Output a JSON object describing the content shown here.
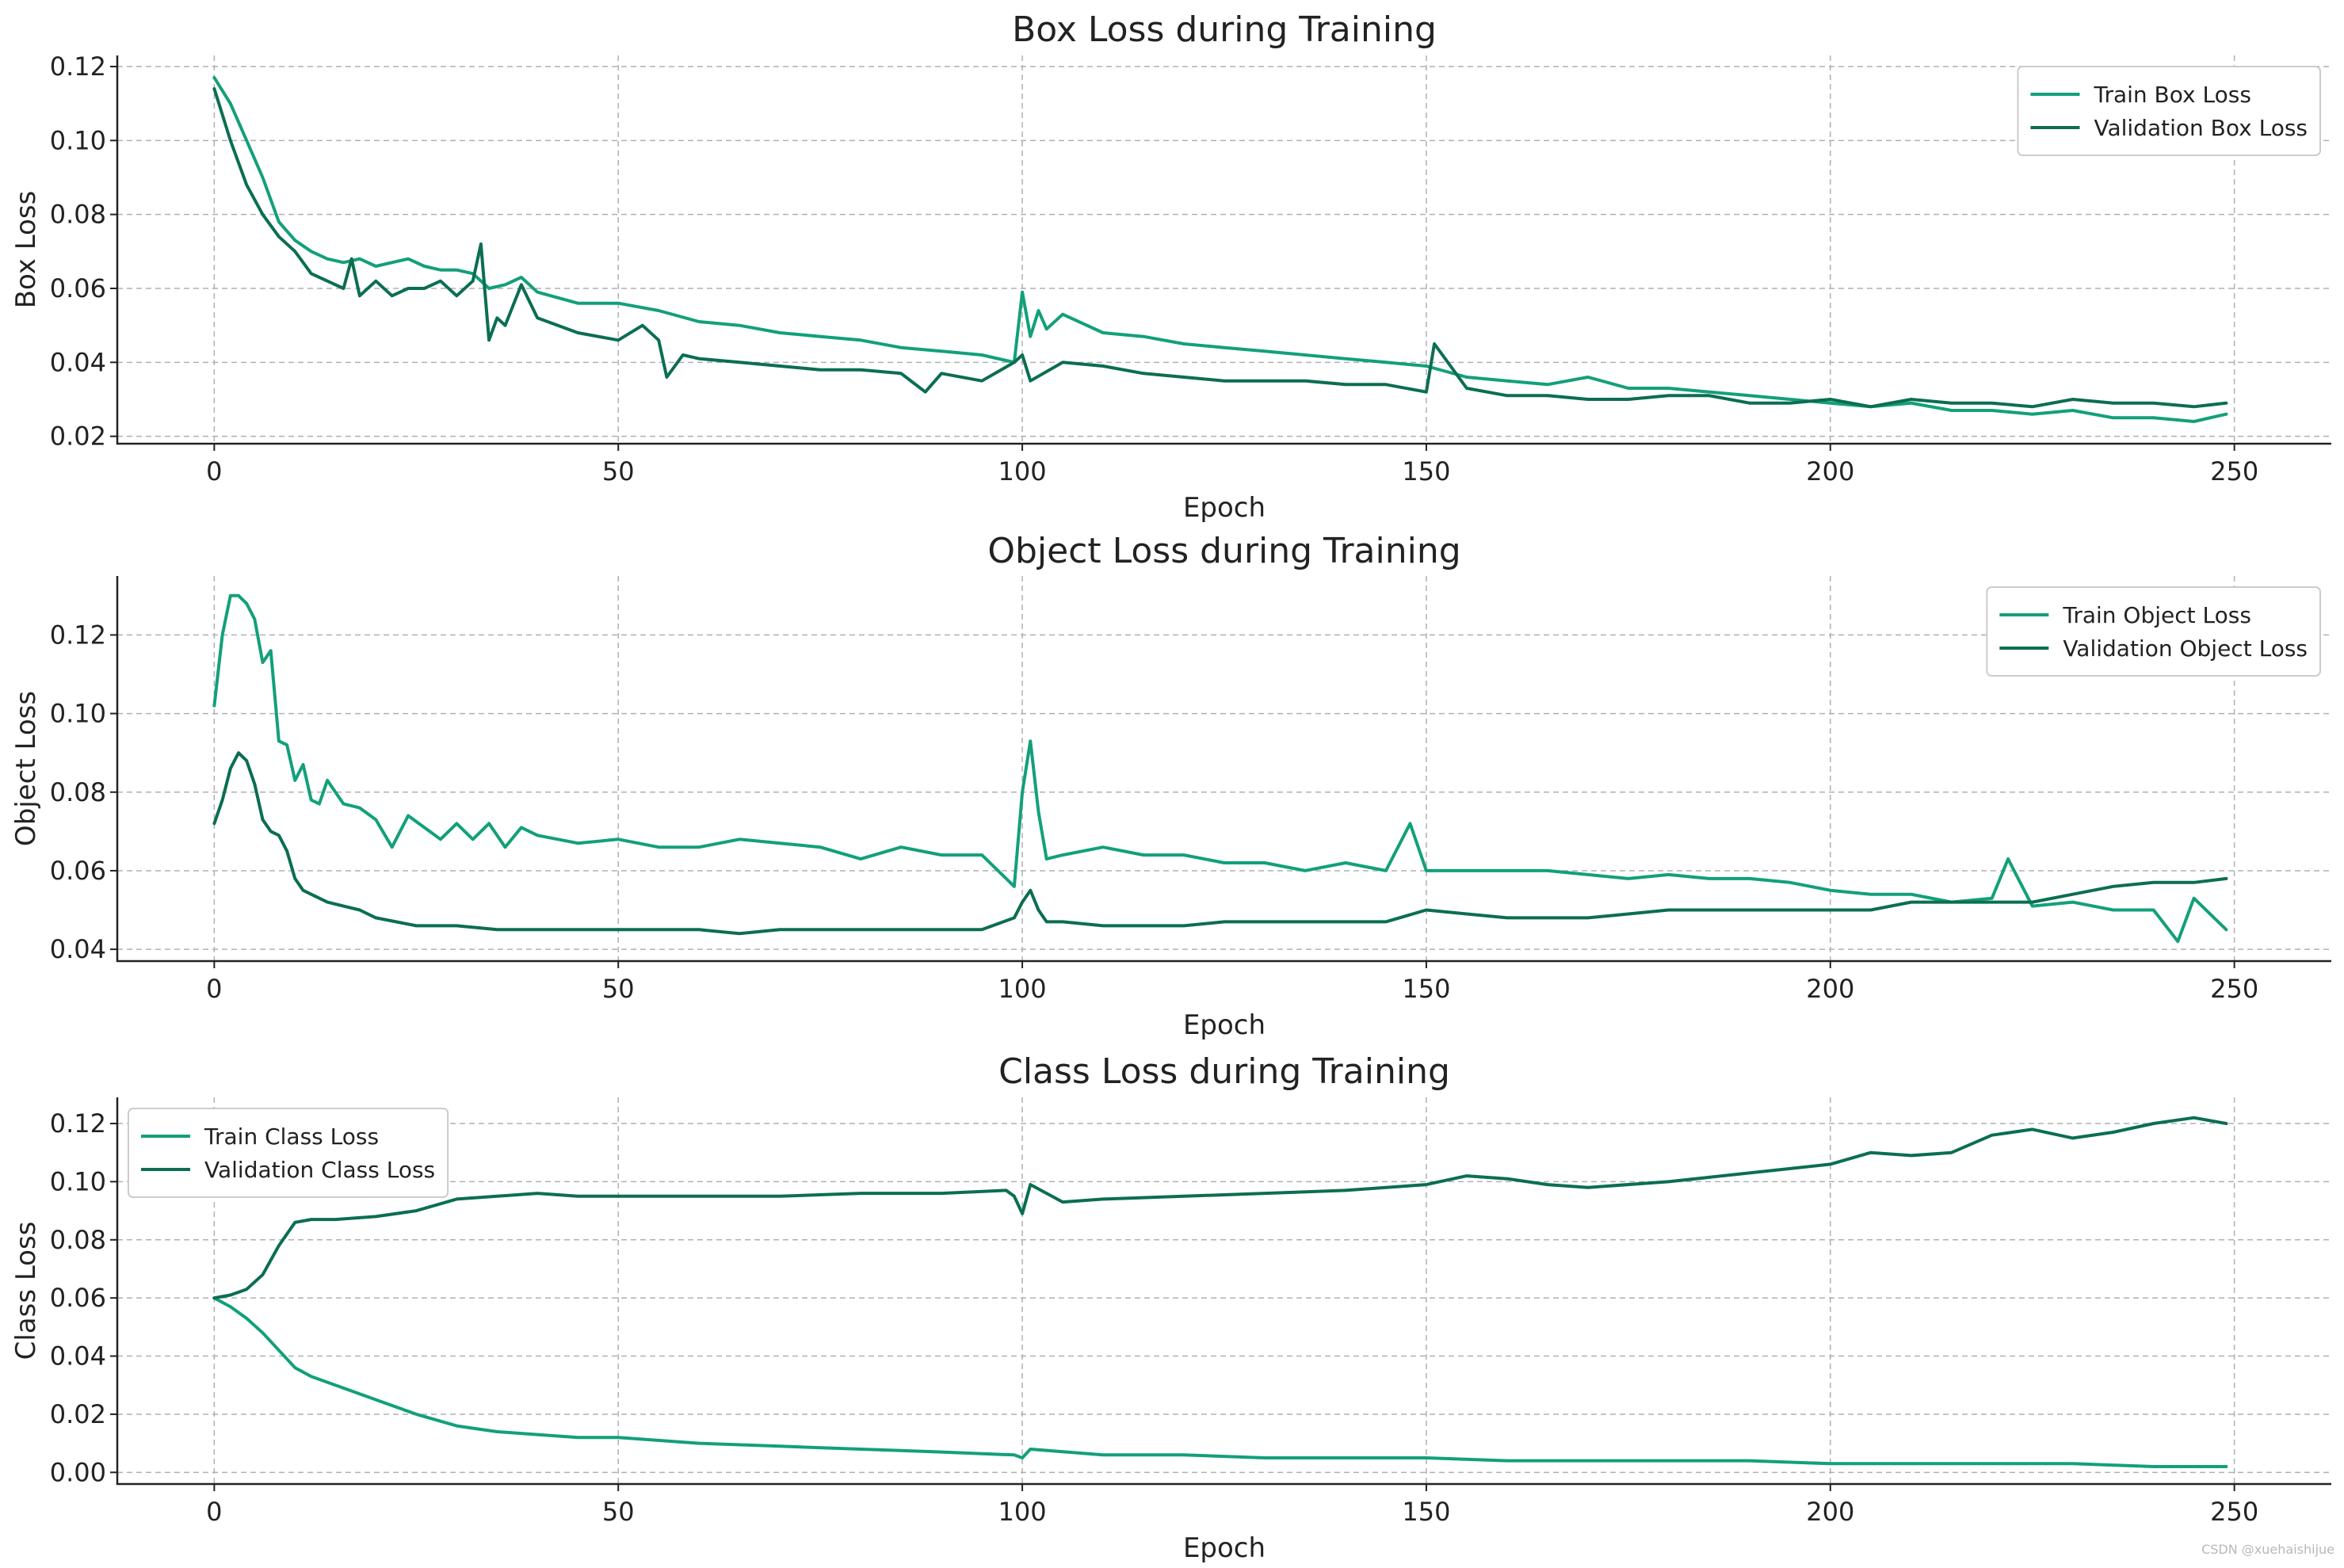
{
  "chart_data": [
    {
      "type": "line",
      "title": "Box Loss during Training",
      "xlabel": "Epoch",
      "ylabel": "Box Loss",
      "xlim": [
        -12,
        262
      ],
      "ylim": [
        0.018,
        0.123
      ],
      "xticks": [
        0,
        50,
        100,
        150,
        200,
        250
      ],
      "yticks": [
        0.02,
        0.04,
        0.06,
        0.08,
        0.1,
        0.12
      ],
      "ytick_decimals": 2,
      "grid": true,
      "legend_position": "top-right",
      "series": [
        {
          "name": "Train Box Loss",
          "color": "#12a07a",
          "x": [
            0,
            2,
            4,
            6,
            8,
            10,
            12,
            14,
            16,
            18,
            20,
            22,
            24,
            26,
            28,
            30,
            32,
            34,
            36,
            38,
            40,
            45,
            50,
            55,
            60,
            65,
            70,
            75,
            80,
            85,
            90,
            95,
            99,
            100,
            101,
            102,
            103,
            105,
            110,
            115,
            120,
            125,
            130,
            135,
            140,
            145,
            150,
            155,
            160,
            165,
            170,
            175,
            180,
            185,
            190,
            195,
            200,
            205,
            210,
            215,
            220,
            225,
            230,
            235,
            240,
            245,
            249
          ],
          "y": [
            0.117,
            0.11,
            0.1,
            0.09,
            0.078,
            0.073,
            0.07,
            0.068,
            0.067,
            0.068,
            0.066,
            0.067,
            0.068,
            0.066,
            0.065,
            0.065,
            0.064,
            0.06,
            0.061,
            0.063,
            0.059,
            0.056,
            0.056,
            0.054,
            0.051,
            0.05,
            0.048,
            0.047,
            0.046,
            0.044,
            0.043,
            0.042,
            0.04,
            0.059,
            0.047,
            0.054,
            0.049,
            0.053,
            0.048,
            0.047,
            0.045,
            0.044,
            0.043,
            0.042,
            0.041,
            0.04,
            0.039,
            0.036,
            0.035,
            0.034,
            0.036,
            0.033,
            0.033,
            0.032,
            0.031,
            0.03,
            0.029,
            0.028,
            0.029,
            0.027,
            0.027,
            0.026,
            0.027,
            0.025,
            0.025,
            0.024,
            0.026
          ]
        },
        {
          "name": "Validation Box Loss",
          "color": "#0b6e52",
          "x": [
            0,
            2,
            4,
            6,
            8,
            10,
            12,
            14,
            16,
            17,
            18,
            20,
            22,
            24,
            26,
            28,
            30,
            32,
            33,
            34,
            35,
            36,
            38,
            40,
            45,
            50,
            53,
            55,
            56,
            58,
            60,
            65,
            70,
            75,
            80,
            85,
            88,
            90,
            95,
            99,
            100,
            101,
            105,
            110,
            115,
            120,
            125,
            130,
            135,
            140,
            145,
            150,
            151,
            155,
            160,
            165,
            170,
            175,
            180,
            185,
            190,
            195,
            200,
            205,
            210,
            215,
            220,
            225,
            230,
            235,
            240,
            245,
            249
          ],
          "y": [
            0.114,
            0.1,
            0.088,
            0.08,
            0.074,
            0.07,
            0.064,
            0.062,
            0.06,
            0.068,
            0.058,
            0.062,
            0.058,
            0.06,
            0.06,
            0.062,
            0.058,
            0.062,
            0.072,
            0.046,
            0.052,
            0.05,
            0.061,
            0.052,
            0.048,
            0.046,
            0.05,
            0.046,
            0.036,
            0.042,
            0.041,
            0.04,
            0.039,
            0.038,
            0.038,
            0.037,
            0.032,
            0.037,
            0.035,
            0.04,
            0.042,
            0.035,
            0.04,
            0.039,
            0.037,
            0.036,
            0.035,
            0.035,
            0.035,
            0.034,
            0.034,
            0.032,
            0.045,
            0.033,
            0.031,
            0.031,
            0.03,
            0.03,
            0.031,
            0.031,
            0.029,
            0.029,
            0.03,
            0.028,
            0.03,
            0.029,
            0.029,
            0.028,
            0.03,
            0.029,
            0.029,
            0.028,
            0.029
          ]
        }
      ]
    },
    {
      "type": "line",
      "title": "Object Loss during Training",
      "xlabel": "Epoch",
      "ylabel": "Object Loss",
      "xlim": [
        -12,
        262
      ],
      "ylim": [
        0.037,
        0.135
      ],
      "xticks": [
        0,
        50,
        100,
        150,
        200,
        250
      ],
      "yticks": [
        0.04,
        0.06,
        0.08,
        0.1,
        0.12
      ],
      "ytick_decimals": 2,
      "grid": true,
      "legend_position": "top-right",
      "series": [
        {
          "name": "Train Object Loss",
          "color": "#12a07a",
          "x": [
            0,
            1,
            2,
            3,
            4,
            5,
            6,
            7,
            8,
            9,
            10,
            11,
            12,
            13,
            14,
            15,
            16,
            18,
            20,
            22,
            24,
            26,
            28,
            30,
            32,
            34,
            36,
            38,
            40,
            45,
            50,
            55,
            60,
            65,
            70,
            75,
            80,
            85,
            90,
            95,
            99,
            100,
            101,
            102,
            103,
            105,
            110,
            115,
            120,
            125,
            130,
            135,
            140,
            145,
            148,
            150,
            155,
            160,
            165,
            170,
            175,
            180,
            185,
            190,
            195,
            200,
            205,
            210,
            215,
            220,
            222,
            225,
            230,
            235,
            240,
            243,
            245,
            249
          ],
          "y": [
            0.102,
            0.12,
            0.13,
            0.13,
            0.128,
            0.124,
            0.113,
            0.116,
            0.093,
            0.092,
            0.083,
            0.087,
            0.078,
            0.077,
            0.083,
            0.08,
            0.077,
            0.076,
            0.073,
            0.066,
            0.074,
            0.071,
            0.068,
            0.072,
            0.068,
            0.072,
            0.066,
            0.071,
            0.069,
            0.067,
            0.068,
            0.066,
            0.066,
            0.068,
            0.067,
            0.066,
            0.063,
            0.066,
            0.064,
            0.064,
            0.056,
            0.08,
            0.093,
            0.075,
            0.063,
            0.064,
            0.066,
            0.064,
            0.064,
            0.062,
            0.062,
            0.06,
            0.062,
            0.06,
            0.072,
            0.06,
            0.06,
            0.06,
            0.06,
            0.059,
            0.058,
            0.059,
            0.058,
            0.058,
            0.057,
            0.055,
            0.054,
            0.054,
            0.052,
            0.053,
            0.063,
            0.051,
            0.052,
            0.05,
            0.05,
            0.042,
            0.053,
            0.045
          ]
        },
        {
          "name": "Validation Object Loss",
          "color": "#0b6e52",
          "x": [
            0,
            1,
            2,
            3,
            4,
            5,
            6,
            7,
            8,
            9,
            10,
            11,
            12,
            14,
            16,
            18,
            20,
            25,
            30,
            35,
            40,
            45,
            50,
            55,
            60,
            65,
            70,
            75,
            80,
            85,
            90,
            95,
            99,
            100,
            101,
            102,
            103,
            105,
            110,
            115,
            120,
            125,
            130,
            135,
            140,
            145,
            150,
            155,
            160,
            165,
            170,
            175,
            180,
            185,
            190,
            195,
            200,
            205,
            210,
            215,
            220,
            225,
            230,
            235,
            240,
            245,
            249
          ],
          "y": [
            0.072,
            0.078,
            0.086,
            0.09,
            0.088,
            0.082,
            0.073,
            0.07,
            0.069,
            0.065,
            0.058,
            0.055,
            0.054,
            0.052,
            0.051,
            0.05,
            0.048,
            0.046,
            0.046,
            0.045,
            0.045,
            0.045,
            0.045,
            0.045,
            0.045,
            0.044,
            0.045,
            0.045,
            0.045,
            0.045,
            0.045,
            0.045,
            0.048,
            0.052,
            0.055,
            0.05,
            0.047,
            0.047,
            0.046,
            0.046,
            0.046,
            0.047,
            0.047,
            0.047,
            0.047,
            0.047,
            0.05,
            0.049,
            0.048,
            0.048,
            0.048,
            0.049,
            0.05,
            0.05,
            0.05,
            0.05,
            0.05,
            0.05,
            0.052,
            0.052,
            0.052,
            0.052,
            0.054,
            0.056,
            0.057,
            0.057,
            0.058
          ]
        }
      ]
    },
    {
      "type": "line",
      "title": "Class Loss during Training",
      "xlabel": "Epoch",
      "ylabel": "Class Loss",
      "xlim": [
        -12,
        262
      ],
      "ylim": [
        -0.004,
        0.129
      ],
      "xticks": [
        0,
        50,
        100,
        150,
        200,
        250
      ],
      "yticks": [
        0.0,
        0.02,
        0.04,
        0.06,
        0.08,
        0.1,
        0.12
      ],
      "ytick_decimals": 2,
      "grid": true,
      "legend_position": "top-left",
      "series": [
        {
          "name": "Train Class Loss",
          "color": "#12a07a",
          "x": [
            0,
            2,
            4,
            6,
            8,
            10,
            12,
            15,
            18,
            20,
            25,
            30,
            35,
            40,
            45,
            50,
            60,
            70,
            80,
            90,
            99,
            100,
            101,
            110,
            120,
            130,
            140,
            150,
            160,
            170,
            180,
            190,
            200,
            210,
            220,
            230,
            240,
            249
          ],
          "y": [
            0.06,
            0.057,
            0.053,
            0.048,
            0.042,
            0.036,
            0.033,
            0.03,
            0.027,
            0.025,
            0.02,
            0.016,
            0.014,
            0.013,
            0.012,
            0.012,
            0.01,
            0.009,
            0.008,
            0.007,
            0.006,
            0.005,
            0.008,
            0.006,
            0.006,
            0.005,
            0.005,
            0.005,
            0.004,
            0.004,
            0.004,
            0.004,
            0.003,
            0.003,
            0.003,
            0.003,
            0.002,
            0.002
          ]
        },
        {
          "name": "Validation Class Loss",
          "color": "#0b6e52",
          "x": [
            0,
            2,
            4,
            6,
            8,
            10,
            12,
            15,
            20,
            25,
            30,
            35,
            40,
            45,
            50,
            60,
            70,
            80,
            90,
            98,
            99,
            100,
            101,
            105,
            110,
            120,
            130,
            140,
            150,
            155,
            160,
            165,
            170,
            180,
            190,
            200,
            205,
            210,
            215,
            220,
            225,
            230,
            235,
            240,
            245,
            249
          ],
          "y": [
            0.06,
            0.061,
            0.063,
            0.068,
            0.078,
            0.086,
            0.087,
            0.087,
            0.088,
            0.09,
            0.094,
            0.095,
            0.096,
            0.095,
            0.095,
            0.095,
            0.095,
            0.096,
            0.096,
            0.097,
            0.095,
            0.089,
            0.099,
            0.093,
            0.094,
            0.095,
            0.096,
            0.097,
            0.099,
            0.102,
            0.101,
            0.099,
            0.098,
            0.1,
            0.103,
            0.106,
            0.11,
            0.109,
            0.11,
            0.116,
            0.118,
            0.115,
            0.117,
            0.12,
            0.122,
            0.12
          ]
        }
      ]
    }
  ],
  "watermark": "CSDN @xuehaishijue"
}
